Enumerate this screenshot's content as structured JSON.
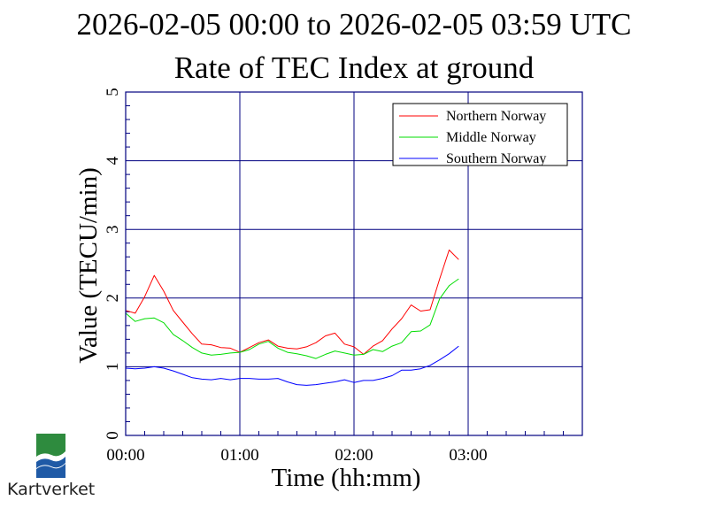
{
  "chart_data": {
    "type": "line",
    "title": "2026-02-05 00:00 to 2026-02-05 03:59 UTC",
    "subtitle": "Rate of TEC Index at ground",
    "xlabel": "Time (hh:mm)",
    "ylabel": "Value (TECU/min)",
    "xlim": [
      0,
      240
    ],
    "ylim": [
      0,
      5
    ],
    "grid": true,
    "legend_position": "top-right",
    "x_ticks": [
      {
        "value": 0,
        "label": "00:00"
      },
      {
        "value": 60,
        "label": "01:00"
      },
      {
        "value": 120,
        "label": "02:00"
      },
      {
        "value": 180,
        "label": "03:00"
      }
    ],
    "y_ticks": [
      {
        "value": 0,
        "label": "0"
      },
      {
        "value": 1,
        "label": "1"
      },
      {
        "value": 2,
        "label": "2"
      },
      {
        "value": 3,
        "label": "3"
      },
      {
        "value": 4,
        "label": "4"
      },
      {
        "value": 5,
        "label": "5"
      }
    ],
    "x": [
      0,
      5,
      10,
      15,
      20,
      25,
      30,
      35,
      40,
      45,
      50,
      55,
      60,
      65,
      70,
      75,
      80,
      85,
      90,
      95,
      100,
      105,
      110,
      115,
      120,
      125,
      130,
      135,
      140,
      145,
      150,
      155,
      160,
      165,
      170,
      175
    ],
    "series": [
      {
        "name": "Northern Norway",
        "color": "#ff0000",
        "values": [
          1.82,
          1.78,
          2.02,
          2.33,
          2.1,
          1.82,
          1.65,
          1.48,
          1.33,
          1.32,
          1.28,
          1.27,
          1.21,
          1.28,
          1.35,
          1.39,
          1.3,
          1.27,
          1.26,
          1.29,
          1.35,
          1.45,
          1.49,
          1.33,
          1.29,
          1.18,
          1.3,
          1.38,
          1.55,
          1.7,
          1.9,
          1.81,
          1.83,
          2.28,
          2.7,
          2.56
        ]
      },
      {
        "name": "Middle Norway",
        "color": "#00dd00",
        "values": [
          1.78,
          1.66,
          1.7,
          1.71,
          1.64,
          1.47,
          1.38,
          1.28,
          1.2,
          1.17,
          1.18,
          1.2,
          1.21,
          1.25,
          1.33,
          1.37,
          1.27,
          1.21,
          1.19,
          1.16,
          1.12,
          1.18,
          1.23,
          1.2,
          1.17,
          1.18,
          1.25,
          1.22,
          1.3,
          1.35,
          1.51,
          1.52,
          1.61,
          1.99,
          2.18,
          2.28
        ]
      },
      {
        "name": "Southern Norway",
        "color": "#0000ff",
        "values": [
          0.98,
          0.97,
          0.98,
          1.0,
          0.98,
          0.94,
          0.89,
          0.84,
          0.82,
          0.81,
          0.83,
          0.81,
          0.83,
          0.83,
          0.82,
          0.82,
          0.83,
          0.78,
          0.74,
          0.73,
          0.74,
          0.76,
          0.78,
          0.81,
          0.77,
          0.8,
          0.8,
          0.83,
          0.87,
          0.95,
          0.95,
          0.97,
          1.02,
          1.1,
          1.19,
          1.3
        ]
      }
    ]
  },
  "logo": {
    "text": "Kartverket",
    "colors": {
      "green": "#2e8b3e",
      "blue": "#1f5aa6"
    }
  }
}
